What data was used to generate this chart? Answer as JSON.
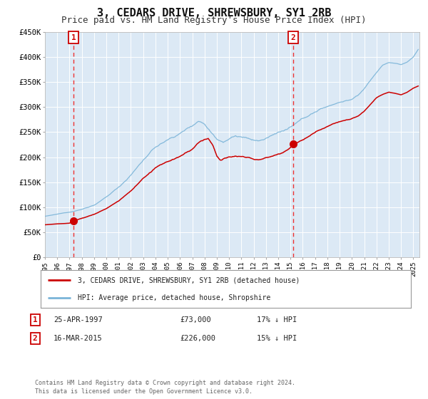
{
  "title": "3, CEDARS DRIVE, SHREWSBURY, SY1 2RB",
  "subtitle": "Price paid vs. HM Land Registry's House Price Index (HPI)",
  "title_fontsize": 11,
  "subtitle_fontsize": 9,
  "bg_color": "#dce9f5",
  "fig_bg_color": "#ffffff",
  "hpi_color": "#7ab4d8",
  "price_color": "#cc0000",
  "marker_color": "#cc0000",
  "vline_color": "#ee3333",
  "ylim": [
    0,
    450000
  ],
  "yticks": [
    0,
    50000,
    100000,
    150000,
    200000,
    250000,
    300000,
    350000,
    400000,
    450000
  ],
  "ytick_labels": [
    "£0",
    "£50K",
    "£100K",
    "£150K",
    "£200K",
    "£250K",
    "£300K",
    "£350K",
    "£400K",
    "£450K"
  ],
  "sale1_date": 1997.32,
  "sale1_price": 73000,
  "sale1_label": "1",
  "sale2_date": 2015.21,
  "sale2_price": 226000,
  "sale2_label": "2",
  "legend_line1": "3, CEDARS DRIVE, SHREWSBURY, SY1 2RB (detached house)",
  "legend_line2": "HPI: Average price, detached house, Shropshire",
  "table_row1": [
    "1",
    "25-APR-1997",
    "£73,000",
    "17% ↓ HPI"
  ],
  "table_row2": [
    "2",
    "16-MAR-2015",
    "£226,000",
    "15% ↓ HPI"
  ],
  "footnote": "Contains HM Land Registry data © Crown copyright and database right 2024.\nThis data is licensed under the Open Government Licence v3.0.",
  "xmin": 1995.0,
  "xmax": 2025.5,
  "xticks": [
    1995,
    1996,
    1997,
    1998,
    1999,
    2000,
    2001,
    2002,
    2003,
    2004,
    2005,
    2006,
    2007,
    2008,
    2009,
    2010,
    2011,
    2012,
    2013,
    2014,
    2015,
    2016,
    2017,
    2018,
    2019,
    2020,
    2021,
    2022,
    2023,
    2024,
    2025
  ],
  "hpi_waypoints": [
    [
      1995.0,
      82000
    ],
    [
      1996.0,
      86000
    ],
    [
      1997.0,
      90000
    ],
    [
      1998.0,
      96000
    ],
    [
      1999.0,
      105000
    ],
    [
      2000.0,
      120000
    ],
    [
      2001.0,
      140000
    ],
    [
      2002.0,
      165000
    ],
    [
      2003.0,
      195000
    ],
    [
      2004.0,
      220000
    ],
    [
      2005.0,
      235000
    ],
    [
      2006.0,
      248000
    ],
    [
      2007.0,
      265000
    ],
    [
      2007.5,
      275000
    ],
    [
      2008.0,
      270000
    ],
    [
      2008.5,
      255000
    ],
    [
      2009.0,
      242000
    ],
    [
      2009.5,
      238000
    ],
    [
      2010.0,
      245000
    ],
    [
      2010.5,
      250000
    ],
    [
      2011.0,
      248000
    ],
    [
      2011.5,
      243000
    ],
    [
      2012.0,
      240000
    ],
    [
      2012.5,
      238000
    ],
    [
      2013.0,
      242000
    ],
    [
      2013.5,
      248000
    ],
    [
      2014.0,
      255000
    ],
    [
      2014.5,
      258000
    ],
    [
      2015.0,
      263000
    ],
    [
      2015.5,
      270000
    ],
    [
      2016.0,
      278000
    ],
    [
      2016.5,
      285000
    ],
    [
      2017.0,
      292000
    ],
    [
      2017.5,
      298000
    ],
    [
      2018.0,
      303000
    ],
    [
      2018.5,
      308000
    ],
    [
      2019.0,
      312000
    ],
    [
      2019.5,
      315000
    ],
    [
      2020.0,
      318000
    ],
    [
      2020.5,
      325000
    ],
    [
      2021.0,
      338000
    ],
    [
      2021.5,
      355000
    ],
    [
      2022.0,
      370000
    ],
    [
      2022.5,
      385000
    ],
    [
      2023.0,
      390000
    ],
    [
      2023.5,
      388000
    ],
    [
      2024.0,
      385000
    ],
    [
      2024.5,
      390000
    ],
    [
      2025.0,
      400000
    ],
    [
      2025.4,
      415000
    ]
  ],
  "price_waypoints": [
    [
      1995.0,
      65000
    ],
    [
      1996.0,
      67000
    ],
    [
      1997.0,
      68000
    ],
    [
      1997.32,
      73000
    ],
    [
      1998.0,
      78000
    ],
    [
      1999.0,
      86000
    ],
    [
      2000.0,
      98000
    ],
    [
      2001.0,
      113000
    ],
    [
      2002.0,
      133000
    ],
    [
      2003.0,
      158000
    ],
    [
      2004.0,
      178000
    ],
    [
      2005.0,
      190000
    ],
    [
      2006.0,
      200000
    ],
    [
      2007.0,
      213000
    ],
    [
      2007.5,
      225000
    ],
    [
      2008.0,
      232000
    ],
    [
      2008.3,
      235000
    ],
    [
      2008.7,
      220000
    ],
    [
      2009.0,
      200000
    ],
    [
      2009.3,
      192000
    ],
    [
      2009.6,
      195000
    ],
    [
      2010.0,
      197000
    ],
    [
      2010.5,
      200000
    ],
    [
      2011.0,
      198000
    ],
    [
      2011.5,
      195000
    ],
    [
      2012.0,
      193000
    ],
    [
      2012.5,
      192000
    ],
    [
      2013.0,
      195000
    ],
    [
      2013.5,
      200000
    ],
    [
      2014.0,
      205000
    ],
    [
      2014.5,
      210000
    ],
    [
      2015.0,
      218000
    ],
    [
      2015.21,
      226000
    ],
    [
      2015.5,
      228000
    ],
    [
      2016.0,
      233000
    ],
    [
      2016.5,
      240000
    ],
    [
      2017.0,
      248000
    ],
    [
      2017.5,
      255000
    ],
    [
      2018.0,
      262000
    ],
    [
      2018.5,
      268000
    ],
    [
      2019.0,
      272000
    ],
    [
      2019.5,
      275000
    ],
    [
      2020.0,
      278000
    ],
    [
      2020.5,
      283000
    ],
    [
      2021.0,
      292000
    ],
    [
      2021.5,
      305000
    ],
    [
      2022.0,
      318000
    ],
    [
      2022.5,
      325000
    ],
    [
      2023.0,
      330000
    ],
    [
      2023.5,
      328000
    ],
    [
      2024.0,
      325000
    ],
    [
      2024.5,
      330000
    ],
    [
      2025.0,
      338000
    ],
    [
      2025.4,
      342000
    ]
  ]
}
